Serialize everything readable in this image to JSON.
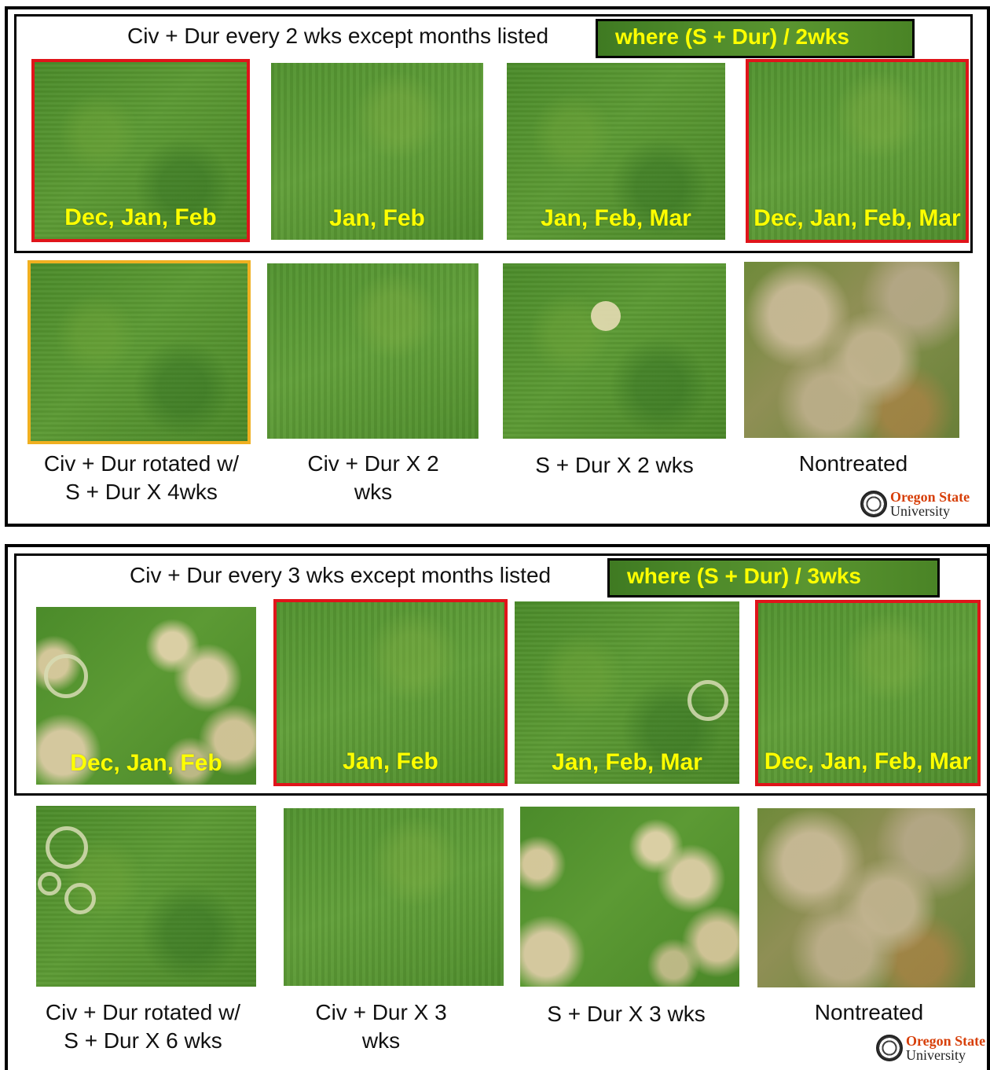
{
  "panels": [
    {
      "heading": "Civ + Dur every  2 wks except months listed",
      "tag": "where (S + Dur) / 2wks",
      "top_photos": [
        {
          "label": "Dec, Jan, Feb",
          "frame": "red"
        },
        {
          "label": "Jan, Feb",
          "frame": "none"
        },
        {
          "label": "Jan, Feb, Mar",
          "frame": "none"
        },
        {
          "label": "Dec, Jan, Feb, Mar",
          "frame": "red"
        }
      ],
      "bottom_captions": [
        {
          "line1": "Civ + Dur rotated w/",
          "line2": "S + Dur X 4wks",
          "frame": "orange"
        },
        {
          "line1": "Civ + Dur X 2",
          "line2": "wks"
        },
        {
          "line1": "S + Dur X 2 wks",
          "line2": ""
        },
        {
          "line1": "Nontreated",
          "line2": ""
        }
      ],
      "logo": {
        "name": "Oregon State",
        "sub": "University"
      }
    },
    {
      "heading": "Civ + Dur every  3 wks except months listed",
      "tag": "where (S + Dur) / 3wks",
      "top_photos": [
        {
          "label": "Dec, Jan, Feb",
          "frame": "none"
        },
        {
          "label": "Jan, Feb",
          "frame": "red"
        },
        {
          "label": "Jan, Feb, Mar",
          "frame": "none"
        },
        {
          "label": "Dec, Jan, Feb, Mar",
          "frame": "red"
        }
      ],
      "bottom_captions": [
        {
          "line1": "Civ + Dur rotated w/",
          "line2": "S + Dur X 6 wks"
        },
        {
          "line1": "Civ + Dur X 3",
          "line2": "wks"
        },
        {
          "line1": "S + Dur X 3 wks",
          "line2": ""
        },
        {
          "line1": "Nontreated",
          "line2": ""
        }
      ],
      "logo": {
        "name": "Oregon State",
        "sub": "University"
      }
    }
  ],
  "colors": {
    "overlay_text": "#ffff00",
    "red_frame": "#e0141a",
    "orange_frame": "#f0b020",
    "osu_orange": "#d73f09"
  }
}
